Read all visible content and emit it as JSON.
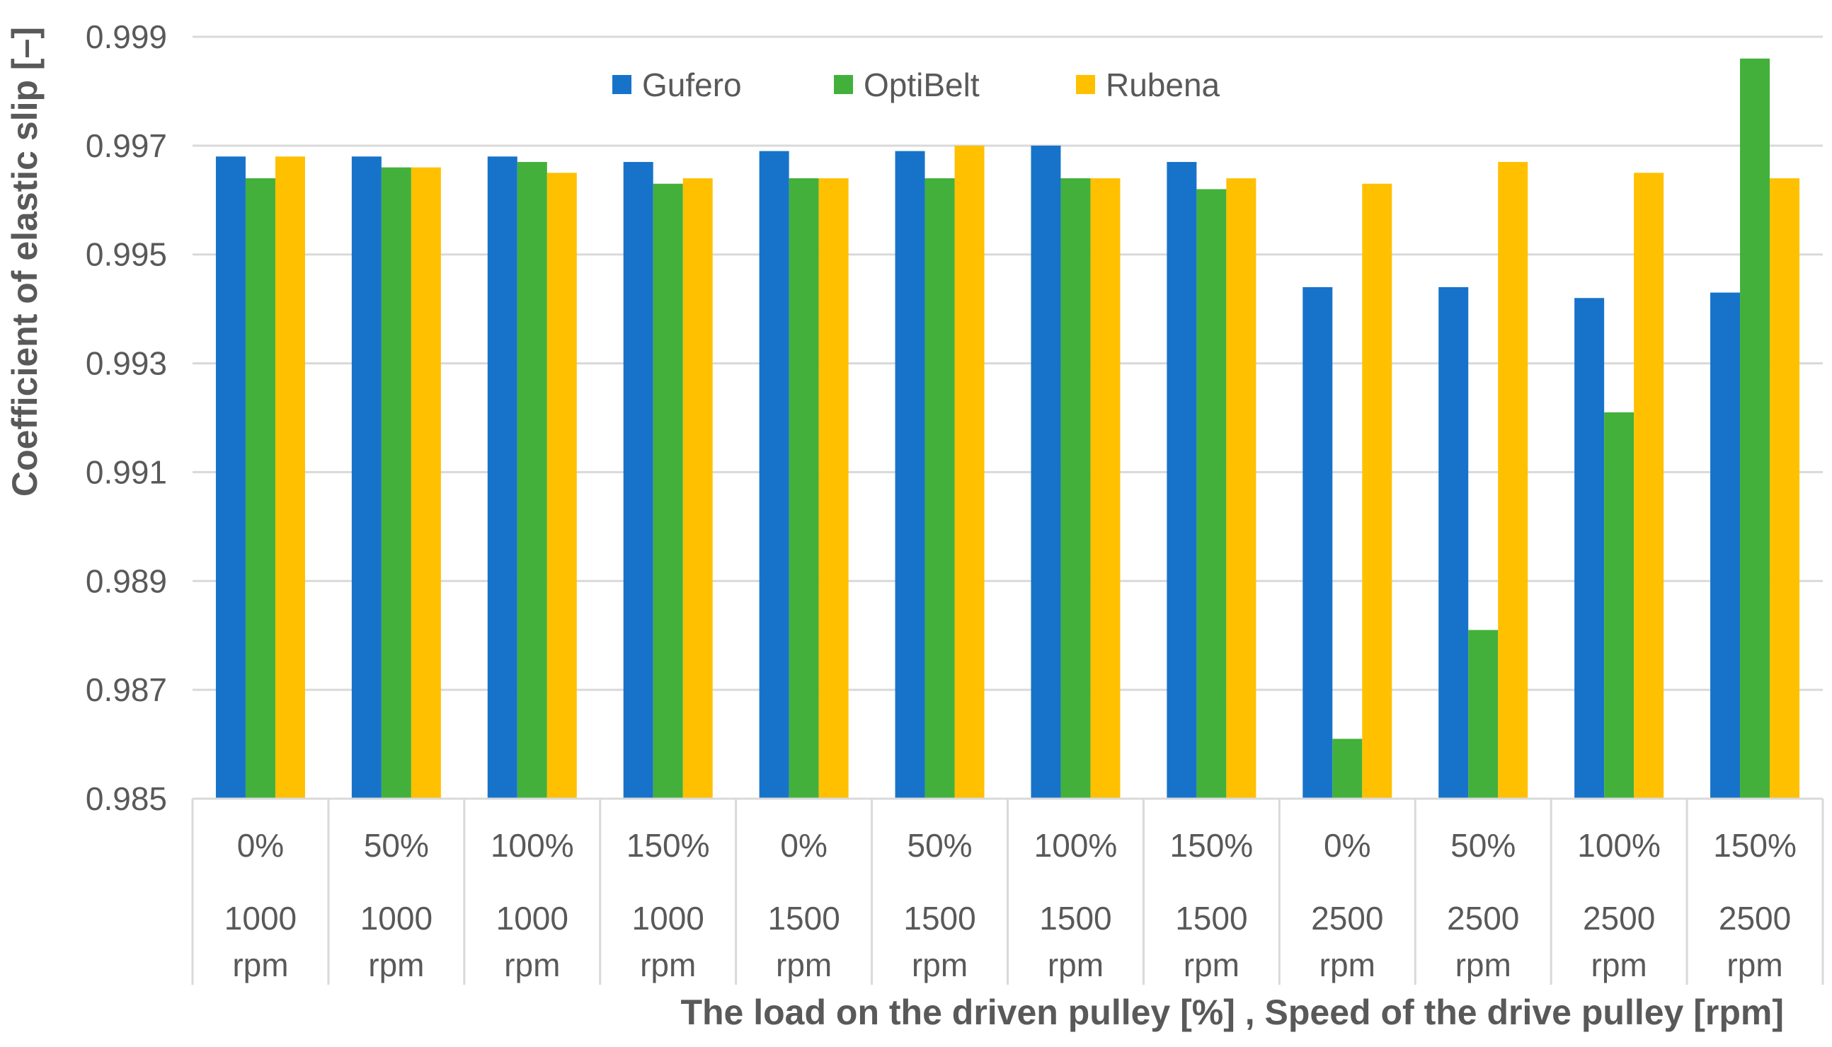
{
  "chart_data": {
    "type": "bar",
    "title": "",
    "xlabel": "The load on the driven pulley [%] , Speed of the drive pulley [rpm]",
    "ylabel": "Coefficient of elastic slip [–]",
    "ylim": [
      0.985,
      0.999
    ],
    "yticks": [
      "0.985",
      "0.987",
      "0.989",
      "0.991",
      "0.993",
      "0.995",
      "0.997",
      "0.999"
    ],
    "grid": true,
    "legend_position": "top-center",
    "categories": [
      {
        "load": "0%",
        "speed": "1000",
        "unit": "rpm"
      },
      {
        "load": "50%",
        "speed": "1000",
        "unit": "rpm"
      },
      {
        "load": "100%",
        "speed": "1000",
        "unit": "rpm"
      },
      {
        "load": "150%",
        "speed": "1000",
        "unit": "rpm"
      },
      {
        "load": "0%",
        "speed": "1500",
        "unit": "rpm"
      },
      {
        "load": "50%",
        "speed": "1500",
        "unit": "rpm"
      },
      {
        "load": "100%",
        "speed": "1500",
        "unit": "rpm"
      },
      {
        "load": "150%",
        "speed": "1500",
        "unit": "rpm"
      },
      {
        "load": "0%",
        "speed": "2500",
        "unit": "rpm"
      },
      {
        "load": "50%",
        "speed": "2500",
        "unit": "rpm"
      },
      {
        "load": "100%",
        "speed": "2500",
        "unit": "rpm"
      },
      {
        "load": "150%",
        "speed": "2500",
        "unit": "rpm"
      }
    ],
    "series": [
      {
        "name": "Gufero",
        "color": "#1773c9",
        "values": [
          0.9968,
          0.9968,
          0.9968,
          0.9967,
          0.9969,
          0.9969,
          0.997,
          0.9967,
          0.9944,
          0.9944,
          0.9942,
          0.9943
        ]
      },
      {
        "name": "OptiBelt",
        "color": "#43b03b",
        "values": [
          0.9964,
          0.9966,
          0.9967,
          0.9963,
          0.9964,
          0.9964,
          0.9964,
          0.9962,
          0.9861,
          0.9881,
          0.9921,
          0.9986
        ]
      },
      {
        "name": "Rubena",
        "color": "#ffc000",
        "values": [
          0.9968,
          0.9966,
          0.9965,
          0.9964,
          0.9964,
          0.997,
          0.9964,
          0.9964,
          0.9963,
          0.9967,
          0.9965,
          0.9964
        ]
      }
    ]
  }
}
